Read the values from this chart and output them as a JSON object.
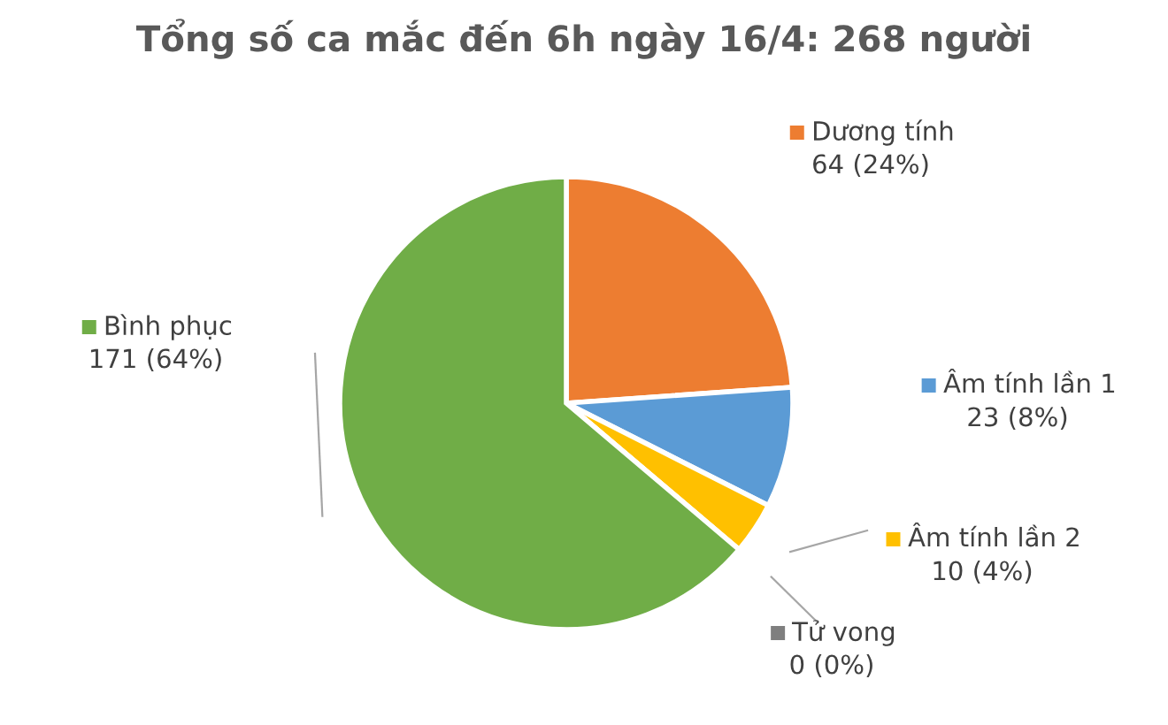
{
  "chart_data": {
    "type": "pie",
    "title": "Tổng số ca mắc đến 6h ngày 16/4: 268 người",
    "categories": [
      "Dương tính",
      "Âm tính lần 1",
      "Âm tính lần 2",
      "Tử vong",
      "Bình phục"
    ],
    "values": [
      64,
      23,
      10,
      0,
      171
    ],
    "value_labels": [
      "64 (24%)",
      "23 (8%)",
      "10 (4%)",
      "0 (0%)",
      "171 (64%)"
    ],
    "colors": [
      "#ed7d31",
      "#5b9bd5",
      "#ffc000",
      "#7f7f7f",
      "#70ad47"
    ],
    "legend": "right"
  }
}
